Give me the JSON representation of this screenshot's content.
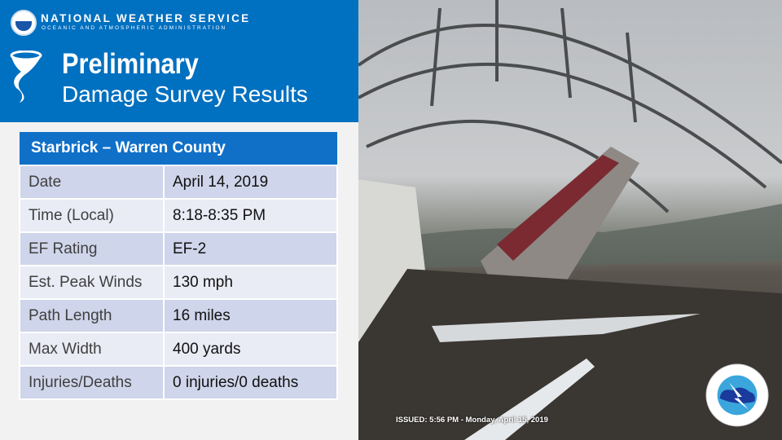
{
  "header": {
    "org": "NATIONAL WEATHER SERVICE",
    "org_sub": "OCEANIC AND ATMOSPHERIC ADMINISTRATION",
    "title_line1": "Preliminary",
    "title_line2": "Damage Survey Results",
    "icon": "tornado-icon"
  },
  "table": {
    "title": "Starbrick – Warren County",
    "rows": [
      {
        "label": "Date",
        "value": "April 14, 2019"
      },
      {
        "label": "Time (Local)",
        "value": "8:18-8:35 PM"
      },
      {
        "label": "EF Rating",
        "value": "EF-2"
      },
      {
        "label": "Est. Peak Winds",
        "value": "130 mph"
      },
      {
        "label": "Path Length",
        "value": "16 miles"
      },
      {
        "label": "Max Width",
        "value": "400 yards"
      },
      {
        "label": "Injuries/Deaths",
        "value": "0 injuries/0 deaths"
      }
    ]
  },
  "photo": {
    "issued": "ISSUED: 5:56 PM - Monday, April 15, 2019",
    "logo_text": "NATIONAL WEATHER SERVICE"
  },
  "colors": {
    "banner": "#0070c0",
    "table_header": "#1070c8",
    "row_dark": "#cfd5ea",
    "row_light": "#e9ebf5"
  }
}
